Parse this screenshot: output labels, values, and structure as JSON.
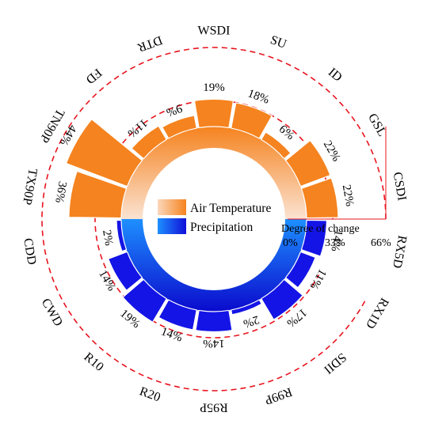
{
  "chart_data": {
    "type": "bar",
    "subtype": "circular-radial-bar",
    "title": "",
    "categories": [
      "CSDI",
      "GSL",
      "ID",
      "SU",
      "WSDI",
      "DTR",
      "FD",
      "TN90P",
      "TX90P",
      "CDD",
      "CWD",
      "R10",
      "R20",
      "R95P",
      "R99P",
      "SDII",
      "RX1D",
      "RX5D"
    ],
    "series": [
      {
        "name": "Air Temperature",
        "color": "#F5831F",
        "items": [
          {
            "category": "CSDI",
            "value": 22,
            "label": "22%"
          },
          {
            "category": "GSL",
            "value": 22,
            "label": "22%"
          },
          {
            "category": "ID",
            "value": 6,
            "label": "6%"
          },
          {
            "category": "SU",
            "value": 18,
            "label": "18%"
          },
          {
            "category": "WSDI",
            "value": 19,
            "label": "19%"
          },
          {
            "category": "DTR",
            "value": 9,
            "label": "9%"
          },
          {
            "category": "FD",
            "value": 11,
            "label": "11%"
          },
          {
            "category": "TN90P",
            "value": 44,
            "label": "44%"
          },
          {
            "category": "TX90P",
            "value": 36,
            "label": "36%"
          }
        ]
      },
      {
        "name": "Precipitation",
        "color": "#1414E6",
        "items": [
          {
            "category": "CDD",
            "value": 2,
            "label": "2%"
          },
          {
            "category": "CWD",
            "value": 14,
            "label": "14%"
          },
          {
            "category": "R10",
            "value": 19,
            "label": "19%"
          },
          {
            "category": "R20",
            "value": 14,
            "label": "14%"
          },
          {
            "category": "R95P",
            "value": 14,
            "label": "14%"
          },
          {
            "category": "R99P",
            "value": 2,
            "label": "2%"
          },
          {
            "category": "SDII",
            "value": 17,
            "label": "17%"
          },
          {
            "category": "RX1D",
            "value": 11,
            "label": "11%"
          },
          {
            "category": "RX5D",
            "value": 14,
            "label": "14%"
          }
        ]
      }
    ],
    "radial_axis": {
      "label": "Degree of change",
      "ticks": [
        0,
        33,
        66
      ],
      "tick_labels": [
        "0%",
        "33%",
        "66%"
      ],
      "range": [
        0,
        66
      ]
    },
    "legend": {
      "placement": "center",
      "entries": [
        "Air Temperature",
        "Precipitation"
      ]
    },
    "gridlines": {
      "style": "dashed",
      "color": "#E8141E",
      "values": [
        33,
        66
      ]
    }
  }
}
